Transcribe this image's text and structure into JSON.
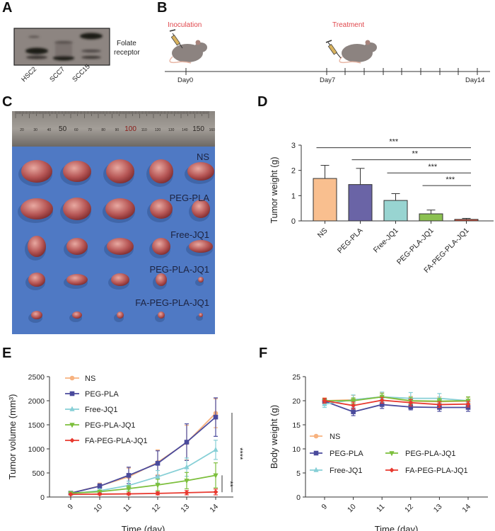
{
  "panels": {
    "A": {
      "label": "A",
      "blot_label_line1": "Folate",
      "blot_label_line2": "receptor",
      "lanes": [
        "HSC2",
        "SCC7",
        "SCC15"
      ]
    },
    "B": {
      "label": "B",
      "event_inoculation": "Inoculation",
      "event_treatment": "Treatment",
      "ticks": [
        "Day0",
        "Day7",
        "Day14"
      ],
      "event_color": "#e0474c"
    },
    "C": {
      "label": "C",
      "ruler_numbers": [
        "20",
        "30",
        "40",
        "50",
        "60",
        "70",
        "80",
        "90",
        "100",
        "110",
        "120",
        "130",
        "140",
        "150",
        "160"
      ],
      "groups": [
        "NS",
        "PEG-PLA",
        "Free-JQ1",
        "PEG-PLA-JQ1",
        "FA-PEG-PLA-JQ1"
      ],
      "background_color": "#4f79c4"
    },
    "D": {
      "label": "D"
    },
    "E": {
      "label": "E"
    },
    "F": {
      "label": "F"
    }
  },
  "chart_data": [
    {
      "id": "D",
      "type": "bar",
      "title": "",
      "xlabel": "",
      "ylabel": "Tumor weight (g)",
      "ylim": [
        0,
        3
      ],
      "yticks": [
        0,
        1,
        2,
        3
      ],
      "categories": [
        "NS",
        "PEG-PLA",
        "Free-JQ1",
        "PEG-PLA-JQ1",
        "FA-PEG-PLA-JQ1"
      ],
      "values": [
        1.68,
        1.44,
        0.81,
        0.28,
        0.06
      ],
      "errors": [
        0.52,
        0.64,
        0.27,
        0.15,
        0.04
      ],
      "colors": [
        "#f9bf8f",
        "#6a64a6",
        "#98d4d1",
        "#8cc152",
        "#e0523b"
      ],
      "significance": [
        {
          "from": "NS",
          "to": "FA-PEG-PLA-JQ1",
          "label": "***"
        },
        {
          "from": "PEG-PLA",
          "to": "FA-PEG-PLA-JQ1",
          "label": "**"
        },
        {
          "from": "Free-JQ1",
          "to": "FA-PEG-PLA-JQ1",
          "label": "***"
        },
        {
          "from": "PEG-PLA-JQ1",
          "to": "FA-PEG-PLA-JQ1",
          "label": "***"
        }
      ]
    },
    {
      "id": "E",
      "type": "line",
      "xlabel": "Time (day)",
      "ylabel": "Tumor volume (mm³)",
      "x": [
        9,
        10,
        11,
        12,
        13,
        14
      ],
      "ylim": [
        0,
        2500
      ],
      "yticks": [
        0,
        500,
        1000,
        1500,
        2000,
        2500
      ],
      "legend_position": "top-left",
      "series": [
        {
          "name": "NS",
          "color": "#f7b27f",
          "marker": "circle",
          "values": [
            80,
            230,
            420,
            720,
            1130,
            1740
          ],
          "errors": [
            20,
            60,
            180,
            260,
            360,
            300
          ]
        },
        {
          "name": "PEG-PLA",
          "color": "#4a4a9c",
          "marker": "square",
          "values": [
            80,
            225,
            450,
            700,
            1140,
            1660
          ],
          "errors": [
            20,
            50,
            170,
            260,
            380,
            400
          ]
        },
        {
          "name": "Free-JQ1",
          "color": "#86cfd6",
          "marker": "triangle",
          "values": [
            70,
            130,
            240,
            420,
            620,
            980
          ],
          "errors": [
            15,
            40,
            90,
            130,
            190,
            200
          ]
        },
        {
          "name": "PEG-PLA-JQ1",
          "color": "#7cbf3c",
          "marker": "triangle-down",
          "values": [
            80,
            110,
            175,
            250,
            340,
            450
          ],
          "errors": [
            15,
            30,
            60,
            120,
            170,
            260
          ]
        },
        {
          "name": "FA-PEG-PLA-JQ1",
          "color": "#e8392f",
          "marker": "diamond",
          "values": [
            55,
            60,
            65,
            75,
            90,
            105
          ],
          "errors": [
            10,
            15,
            20,
            30,
            45,
            60
          ]
        }
      ],
      "significance": [
        {
          "label": "****",
          "between": [
            "NS",
            "FA-PEG-PLA-JQ1"
          ]
        },
        {
          "label": "**",
          "between": [
            "PEG-PLA-JQ1",
            "FA-PEG-PLA-JQ1"
          ]
        }
      ]
    },
    {
      "id": "F",
      "type": "line",
      "xlabel": "Time (day)",
      "ylabel": "Body weight (g)",
      "x": [
        9,
        10,
        11,
        12,
        13,
        14
      ],
      "ylim": [
        0,
        25
      ],
      "yticks": [
        0,
        5,
        10,
        15,
        20,
        25
      ],
      "legend_position": "bottom-left",
      "series": [
        {
          "name": "NS",
          "color": "#f7b27f",
          "marker": "circle",
          "values": [
            20.0,
            20.2,
            20.8,
            19.9,
            19.8,
            19.9
          ],
          "errors": [
            0.6,
            0.9,
            0.9,
            1.0,
            1.0,
            0.8
          ]
        },
        {
          "name": "PEG-PLA",
          "color": "#4a4a9c",
          "marker": "square",
          "values": [
            19.9,
            17.7,
            19.2,
            18.7,
            18.6,
            18.6
          ],
          "errors": [
            0.5,
            0.8,
            0.8,
            0.6,
            0.8,
            0.8
          ]
        },
        {
          "name": "Free-JQ1",
          "color": "#86cfd6",
          "marker": "triangle",
          "values": [
            19.3,
            20.2,
            20.8,
            20.5,
            20.5,
            20.0
          ],
          "errors": [
            0.7,
            1.0,
            1.0,
            1.2,
            1.0,
            0.8
          ]
        },
        {
          "name": "PEG-PLA-JQ1",
          "color": "#7cbf3c",
          "marker": "triangle-down",
          "values": [
            20.0,
            20.0,
            20.8,
            20.0,
            19.9,
            20.0
          ],
          "errors": [
            0.5,
            0.6,
            0.7,
            0.7,
            0.6,
            0.8
          ]
        },
        {
          "name": "FA-PEG-PLA-JQ1",
          "color": "#e8392f",
          "marker": "diamond",
          "values": [
            20.0,
            19.0,
            20.1,
            19.6,
            19.2,
            19.3
          ],
          "errors": [
            0.5,
            0.7,
            0.6,
            0.7,
            0.6,
            0.6
          ]
        }
      ]
    }
  ]
}
